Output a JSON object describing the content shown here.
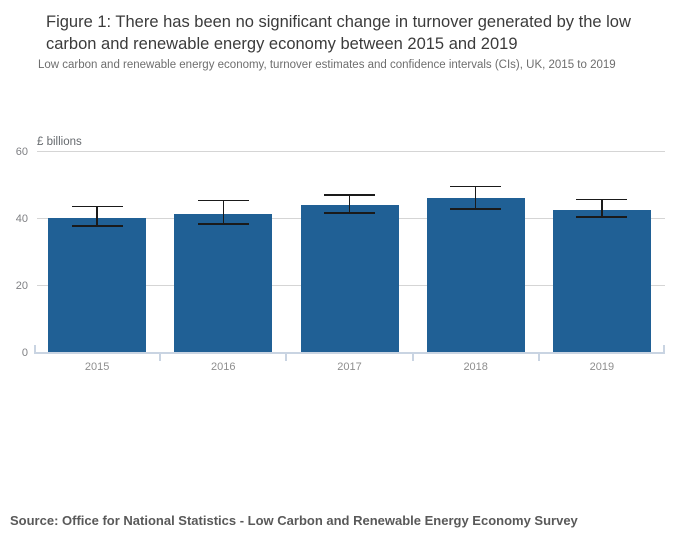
{
  "header": {
    "title": "Figure 1: There has been no significant change in turnover generated by the low carbon and renewable energy economy between 2015 and 2019",
    "subtitle": "Low carbon and renewable energy economy, turnover estimates and confidence intervals (CIs), UK, 2015 to 2019"
  },
  "footer": {
    "source": "Source: Office for National Statistics - Low Carbon and Renewable Energy Economy Survey"
  },
  "chart_data": {
    "type": "bar",
    "title": "Figure 1: There has been no significant change in turnover generated by the low carbon and renewable energy economy between 2015 and 2019",
    "subtitle": "Low carbon and renewable energy economy, turnover estimates and confidence intervals (CIs), UK, 2015 to 2019",
    "unit_label": "£ billions",
    "categories": [
      "2015",
      "2016",
      "2017",
      "2018",
      "2019"
    ],
    "series": [
      {
        "name": "Turnover",
        "values": [
          40.1,
          41.2,
          44.1,
          46.0,
          42.4
        ]
      }
    ],
    "error_bars": {
      "low": [
        37.7,
        38.3,
        41.6,
        42.9,
        40.4
      ],
      "high": [
        43.6,
        45.4,
        47.0,
        49.6,
        45.7
      ]
    },
    "ylim": [
      0,
      60
    ],
    "yticks": [
      0,
      20,
      40,
      60
    ],
    "xlabel": "",
    "ylabel": "£ billions",
    "grid": true,
    "legend": "none",
    "colors": {
      "bar": "#206095",
      "error_bar": "#1a1a1a",
      "gridline": "#d5d5d5",
      "axis_line": "#c9d4e2"
    }
  }
}
